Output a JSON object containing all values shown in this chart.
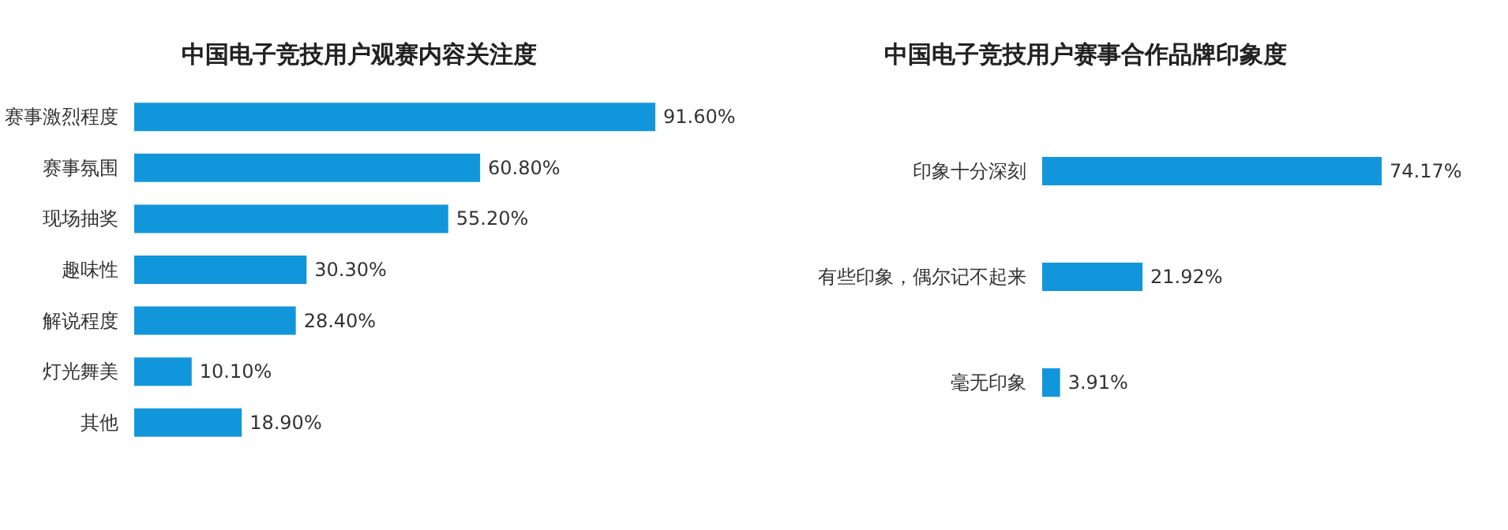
{
  "chart_data": [
    {
      "type": "bar",
      "orientation": "horizontal",
      "title": "中国电子竞技用户观赛内容关注度",
      "categories": [
        "赛事激烈程度",
        "赛事氛围",
        "现场抽奖",
        "趣味性",
        "解说程度",
        "灯光舞美",
        "其他"
      ],
      "values": [
        91.6,
        60.8,
        55.2,
        30.3,
        28.4,
        10.1,
        18.9
      ],
      "value_labels": [
        "91.60%",
        "60.80%",
        "55.20%",
        "30.30%",
        "28.40%",
        "10.10%",
        "18.90%"
      ],
      "color": "#1296db"
    },
    {
      "type": "bar",
      "orientation": "horizontal",
      "title": "中国电子竞技用户赛事合作品牌印象度",
      "categories": [
        "印象十分深刻",
        "有些印象，偶尔记不起来",
        "毫无印象"
      ],
      "values": [
        74.17,
        21.92,
        3.91
      ],
      "value_labels": [
        "74.17%",
        "21.92%",
        "3.91%"
      ],
      "color": "#1296db"
    }
  ]
}
